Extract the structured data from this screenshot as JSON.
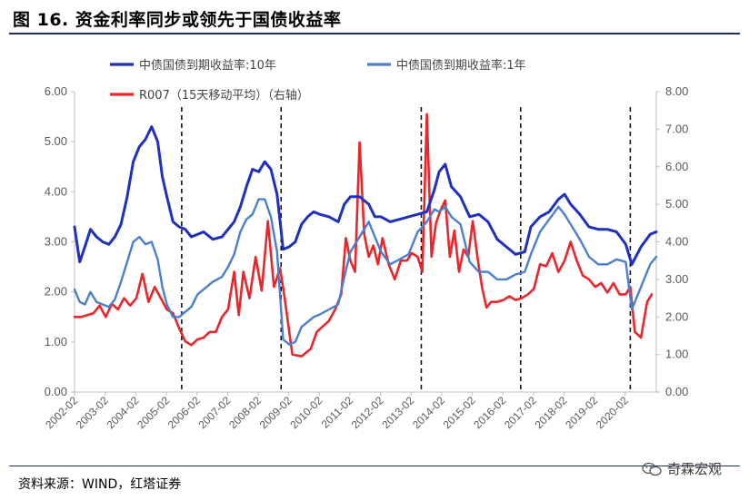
{
  "header": {
    "title": "图 16. 资金利率同步或领先于国债收益率"
  },
  "footer": {
    "source": "资料来源：WIND，红塔证券",
    "watermark": "奇霖宏观"
  },
  "colors": {
    "ten_year": "#1f2fbf",
    "one_year": "#4a7fd0",
    "r007": "#e8262b",
    "rule": "#1f2d5a"
  },
  "icons": {
    "watermark_logo": "wechat-icon"
  },
  "chart_data": {
    "type": "line",
    "title": "",
    "xlabel": "",
    "ylabel": "",
    "ylim": [
      0,
      6
    ],
    "y2lim": [
      0,
      8
    ],
    "yticks": [
      "0.00",
      "1.00",
      "2.00",
      "3.00",
      "4.00",
      "5.00",
      "6.00"
    ],
    "y2ticks": [
      "0.00",
      "1.00",
      "2.00",
      "3.00",
      "4.00",
      "5.00",
      "6.00",
      "7.00",
      "8.00"
    ],
    "xlim": [
      2002.08,
      2021.1
    ],
    "xticks": [
      "2002-02",
      "2003-02",
      "2004-02",
      "2005-02",
      "2006-02",
      "2007-02",
      "2008-02",
      "2009-02",
      "2010-02",
      "2011-02",
      "2012-02",
      "2013-02",
      "2014-02",
      "2015-02",
      "2016-02",
      "2017-02",
      "2018-02",
      "2019-02",
      "2020-02"
    ],
    "grid": false,
    "legend_position": "top",
    "dashed_markers": [
      "2005-08",
      "2008-11",
      "2013-06",
      "2016-09",
      "2020-04"
    ],
    "series": [
      {
        "name": "中债国债到期收益率:10年",
        "axis": "left",
        "x": [
          2002.08,
          2002.25,
          2002.42,
          2002.6,
          2002.8,
          2003.0,
          2003.2,
          2003.4,
          2003.6,
          2003.8,
          2004.0,
          2004.2,
          2004.4,
          2004.6,
          2004.8,
          2004.95,
          2005.1,
          2005.3,
          2005.5,
          2005.7,
          2005.9,
          2006.1,
          2006.3,
          2006.6,
          2006.9,
          2007.1,
          2007.3,
          2007.5,
          2007.7,
          2007.9,
          2008.1,
          2008.3,
          2008.5,
          2008.7,
          2008.9,
          2009.1,
          2009.3,
          2009.5,
          2009.7,
          2009.9,
          2010.1,
          2010.4,
          2010.7,
          2010.9,
          2011.1,
          2011.4,
          2011.7,
          2011.9,
          2012.1,
          2012.4,
          2012.7,
          2013.0,
          2013.3,
          2013.6,
          2013.85,
          2014.0,
          2014.2,
          2014.4,
          2014.7,
          2015.0,
          2015.3,
          2015.6,
          2015.9,
          2016.2,
          2016.5,
          2016.8,
          2017.0,
          2017.3,
          2017.6,
          2017.9,
          2018.1,
          2018.3,
          2018.6,
          2018.9,
          2019.2,
          2019.5,
          2019.8,
          2020.1,
          2020.3,
          2020.6,
          2020.9,
          2021.1
        ],
        "values": [
          3.3,
          2.6,
          2.9,
          3.25,
          3.1,
          3.0,
          2.95,
          3.1,
          3.35,
          3.9,
          4.6,
          4.9,
          5.05,
          5.3,
          5.0,
          4.3,
          3.9,
          3.4,
          3.3,
          3.25,
          3.1,
          3.15,
          3.2,
          3.05,
          3.1,
          3.25,
          3.4,
          3.7,
          4.1,
          4.45,
          4.4,
          4.6,
          4.45,
          3.95,
          2.85,
          2.9,
          3.0,
          3.35,
          3.5,
          3.6,
          3.55,
          3.5,
          3.4,
          3.75,
          3.9,
          3.9,
          3.75,
          3.5,
          3.5,
          3.4,
          3.45,
          3.5,
          3.55,
          3.6,
          4.05,
          4.4,
          4.55,
          4.1,
          3.9,
          3.5,
          3.55,
          3.4,
          3.05,
          2.9,
          2.75,
          2.8,
          3.3,
          3.5,
          3.6,
          3.85,
          3.95,
          3.75,
          3.55,
          3.3,
          3.25,
          3.25,
          3.2,
          2.95,
          2.55,
          2.9,
          3.15,
          3.2
        ]
      },
      {
        "name": "中债国债到期收益率:1年",
        "axis": "left",
        "x": [
          2002.08,
          2002.25,
          2002.42,
          2002.6,
          2002.8,
          2003.0,
          2003.2,
          2003.4,
          2003.6,
          2003.8,
          2004.0,
          2004.2,
          2004.4,
          2004.6,
          2004.8,
          2004.95,
          2005.1,
          2005.3,
          2005.5,
          2005.7,
          2005.9,
          2006.1,
          2006.3,
          2006.6,
          2006.9,
          2007.1,
          2007.3,
          2007.5,
          2007.7,
          2007.9,
          2008.1,
          2008.3,
          2008.5,
          2008.7,
          2008.9,
          2009.1,
          2009.3,
          2009.5,
          2009.7,
          2009.9,
          2010.1,
          2010.4,
          2010.7,
          2010.9,
          2011.1,
          2011.4,
          2011.7,
          2011.9,
          2012.1,
          2012.4,
          2012.7,
          2013.0,
          2013.3,
          2013.6,
          2013.85,
          2014.0,
          2014.2,
          2014.4,
          2014.7,
          2015.0,
          2015.3,
          2015.6,
          2015.9,
          2016.2,
          2016.5,
          2016.8,
          2017.0,
          2017.3,
          2017.6,
          2017.9,
          2018.1,
          2018.3,
          2018.6,
          2018.9,
          2019.2,
          2019.5,
          2019.8,
          2020.1,
          2020.3,
          2020.6,
          2020.9,
          2021.1
        ],
        "values": [
          2.05,
          1.8,
          1.75,
          2.0,
          1.8,
          1.75,
          1.7,
          1.85,
          2.2,
          2.6,
          3.0,
          3.1,
          2.95,
          3.0,
          2.65,
          2.1,
          1.75,
          1.5,
          1.5,
          1.6,
          1.7,
          1.95,
          2.05,
          2.2,
          2.3,
          2.5,
          2.75,
          3.2,
          3.45,
          3.55,
          3.85,
          3.85,
          3.5,
          2.8,
          1.05,
          0.95,
          1.0,
          1.3,
          1.4,
          1.5,
          1.55,
          1.65,
          1.75,
          2.3,
          2.8,
          3.1,
          3.4,
          3.1,
          2.8,
          2.55,
          2.65,
          2.75,
          3.2,
          3.4,
          3.65,
          3.6,
          3.7,
          3.5,
          3.35,
          2.6,
          2.4,
          2.4,
          2.25,
          2.25,
          2.35,
          2.4,
          2.75,
          3.2,
          3.45,
          3.7,
          3.55,
          3.35,
          3.05,
          2.7,
          2.55,
          2.55,
          2.65,
          2.6,
          1.65,
          2.1,
          2.55,
          2.7
        ]
      },
      {
        "name": "R007（15天移动平均）（右轴）",
        "axis": "right",
        "x": [
          2002.08,
          2002.3,
          2002.5,
          2002.7,
          2002.9,
          2003.1,
          2003.3,
          2003.5,
          2003.7,
          2003.9,
          2004.1,
          2004.3,
          2004.5,
          2004.7,
          2004.9,
          2005.1,
          2005.3,
          2005.5,
          2005.7,
          2005.9,
          2006.1,
          2006.3,
          2006.5,
          2006.7,
          2006.9,
          2007.1,
          2007.3,
          2007.45,
          2007.6,
          2007.8,
          2008.0,
          2008.2,
          2008.4,
          2008.6,
          2008.8,
          2008.95,
          2009.2,
          2009.5,
          2009.8,
          2010.0,
          2010.2,
          2010.4,
          2010.6,
          2010.8,
          2010.95,
          2011.1,
          2011.25,
          2011.4,
          2011.55,
          2011.7,
          2011.85,
          2012.0,
          2012.15,
          2012.35,
          2012.55,
          2012.75,
          2012.95,
          2013.1,
          2013.3,
          2013.45,
          2013.6,
          2013.75,
          2013.9,
          2014.05,
          2014.2,
          2014.35,
          2014.5,
          2014.65,
          2014.8,
          2014.95,
          2015.1,
          2015.25,
          2015.4,
          2015.55,
          2015.7,
          2015.9,
          2016.1,
          2016.3,
          2016.5,
          2016.7,
          2016.9,
          2017.1,
          2017.3,
          2017.5,
          2017.7,
          2017.9,
          2018.1,
          2018.3,
          2018.5,
          2018.7,
          2018.9,
          2019.1,
          2019.3,
          2019.5,
          2019.7,
          2019.9,
          2020.1,
          2020.25,
          2020.4,
          2020.6,
          2020.8,
          2020.95
        ],
        "values": [
          2.0,
          2.0,
          2.05,
          2.1,
          2.3,
          2.0,
          2.35,
          2.2,
          2.5,
          2.3,
          2.5,
          3.15,
          2.4,
          2.8,
          2.5,
          2.2,
          2.1,
          1.7,
          1.35,
          1.25,
          1.4,
          1.45,
          1.6,
          1.6,
          2.0,
          2.2,
          3.2,
          2.05,
          3.2,
          2.5,
          3.6,
          2.7,
          4.55,
          2.8,
          3.3,
          2.5,
          1.0,
          0.95,
          1.15,
          1.6,
          1.75,
          1.9,
          2.2,
          2.6,
          4.1,
          3.5,
          3.2,
          6.65,
          4.2,
          3.6,
          3.9,
          3.4,
          4.1,
          3.4,
          3.0,
          3.5,
          3.5,
          3.7,
          3.6,
          3.2,
          7.4,
          3.6,
          4.5,
          4.85,
          5.1,
          3.6,
          4.3,
          3.2,
          3.8,
          3.6,
          4.55,
          3.6,
          2.8,
          2.25,
          2.4,
          2.4,
          2.45,
          2.55,
          2.45,
          2.5,
          2.6,
          2.75,
          3.4,
          3.35,
          3.7,
          3.2,
          3.5,
          4.0,
          3.5,
          3.1,
          3.0,
          2.8,
          2.9,
          2.65,
          2.9,
          2.6,
          2.6,
          2.8,
          1.6,
          1.45,
          2.4,
          2.6
        ]
      }
    ]
  }
}
